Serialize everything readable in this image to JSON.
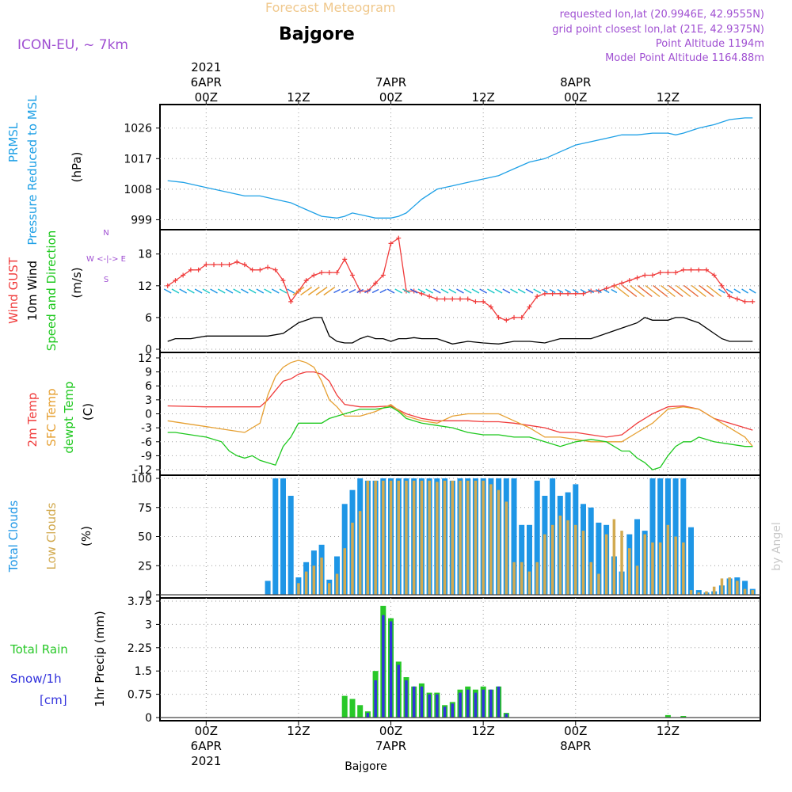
{
  "header": {
    "model": "ICON-EU, ~ 7km",
    "subtitle": "Forecast Meteogram",
    "location": "Bajgore",
    "requested": "requested lon,lat (20.9946E, 42.9555N)",
    "grid": "grid point closest lon,lat (21E, 42.9375N)",
    "point_alt": "Point Altitude 1194m",
    "model_alt": "Model Point Altitude 1164.88m",
    "watermark": "by Angel",
    "footer": "Bajgore"
  },
  "time_axis": {
    "top_labels": [
      {
        "h": 0,
        "lines": [
          "2021",
          "6APR",
          "00Z"
        ]
      },
      {
        "h": 12,
        "lines": [
          "12Z"
        ]
      },
      {
        "h": 24,
        "lines": [
          "7APR",
          "00Z"
        ]
      },
      {
        "h": 36,
        "lines": [
          "12Z"
        ]
      },
      {
        "h": 48,
        "lines": [
          "8APR",
          "00Z"
        ]
      },
      {
        "h": 60,
        "lines": [
          "12Z"
        ]
      }
    ],
    "bottom_labels": [
      {
        "h": 0,
        "lines": [
          "00Z",
          "6APR",
          "2021"
        ]
      },
      {
        "h": 12,
        "lines": [
          "12Z"
        ]
      },
      {
        "h": 24,
        "lines": [
          "00Z",
          "7APR"
        ]
      },
      {
        "h": 36,
        "lines": [
          "12Z"
        ]
      },
      {
        "h": 48,
        "lines": [
          "00Z",
          "8APR"
        ]
      },
      {
        "h": 60,
        "lines": [
          "12Z"
        ]
      }
    ]
  },
  "colors": {
    "prmsl": "#1ea0e6",
    "gust": "#f03c3c",
    "wind": "#000000",
    "temp2m": "#f03c3c",
    "sfc": "#e6a032",
    "dewpt": "#1ec81e",
    "total_cloud": "#1e96e6",
    "low_cloud": "#d2aa50",
    "rain": "#28c828",
    "snow": "#3232dc",
    "axis_label_purple": "#a050d2",
    "subtitle": "#f0c88c"
  },
  "chart_data": [
    {
      "type": "line",
      "ylabels": [
        "PRMSL",
        "Pressure Reduced to MSL",
        "(hPa)"
      ],
      "yticks": [
        999,
        1008,
        1017,
        1026
      ],
      "ylim": [
        997,
        1032
      ],
      "series": [
        {
          "key": "prmsl",
          "x": [
            -5,
            -3,
            -1,
            1,
            3,
            5,
            7,
            9,
            11,
            13,
            15,
            17,
            18,
            19,
            20,
            21,
            22,
            23,
            24,
            25,
            26,
            27,
            28,
            30,
            32,
            34,
            36,
            38,
            40,
            42,
            44,
            46,
            48,
            50,
            52,
            54,
            56,
            58,
            60,
            61,
            62,
            64,
            66,
            68,
            70,
            71
          ],
          "y": [
            1010.5,
            1010,
            1009,
            1008,
            1007,
            1006,
            1006,
            1005,
            1004,
            1002,
            1000,
            999.5,
            1000,
            1001,
            1000.5,
            1000,
            999.5,
            999.5,
            999.5,
            1000,
            1001,
            1003,
            1005,
            1008,
            1009,
            1010,
            1011,
            1012,
            1014,
            1016,
            1017,
            1019,
            1021,
            1022,
            1023,
            1024,
            1024,
            1024.5,
            1024.5,
            1024,
            1024.5,
            1026,
            1027,
            1028.5,
            1029,
            1029
          ]
        }
      ]
    },
    {
      "type": "line",
      "ylabels": [
        "Wind GUST",
        "10m Wind",
        "Speed and Direction",
        "(m/s)"
      ],
      "compass": [
        "N",
        "W <-|-> E",
        "S"
      ],
      "yticks": [
        0,
        6,
        12,
        18
      ],
      "ylim": [
        0,
        22
      ],
      "series": [
        {
          "key": "gust",
          "x": [
            -5,
            -4,
            -3,
            -2,
            -1,
            0,
            1,
            2,
            3,
            4,
            5,
            6,
            7,
            8,
            9,
            10,
            11,
            12,
            13,
            14,
            15,
            16,
            17,
            18,
            19,
            20,
            21,
            22,
            23,
            24,
            25,
            26,
            27,
            28,
            29,
            30,
            31,
            32,
            33,
            34,
            35,
            36,
            37,
            38,
            39,
            40,
            41,
            42,
            43,
            44,
            45,
            46,
            47,
            48,
            49,
            50,
            51,
            52,
            53,
            54,
            55,
            56,
            57,
            58,
            59,
            60,
            61,
            62,
            63,
            64,
            65,
            66,
            67,
            68,
            69,
            70,
            71
          ],
          "y": [
            12,
            13,
            14,
            15,
            15,
            16,
            16,
            16,
            16,
            16.5,
            16,
            15,
            15,
            15.5,
            15,
            13,
            9,
            11,
            13,
            14,
            14.5,
            14.5,
            14.5,
            17,
            14,
            11,
            11,
            12.5,
            14,
            20,
            21,
            11,
            11,
            10.5,
            10,
            9.5,
            9.5,
            9.5,
            9.5,
            9.5,
            9,
            9,
            8,
            6,
            5.5,
            6,
            6,
            8,
            10,
            10.5,
            10.5,
            10.5,
            10.5,
            10.5,
            10.5,
            11,
            11,
            11.5,
            12,
            12.5,
            13,
            13.5,
            14,
            14,
            14.5,
            14.5,
            14.5,
            15,
            15,
            15,
            15,
            14,
            12,
            10,
            9.5,
            9,
            9
          ]
        },
        {
          "key": "wind",
          "x": [
            -5,
            -4,
            -2,
            0,
            2,
            4,
            6,
            8,
            10,
            11,
            12,
            13,
            14,
            15,
            16,
            17,
            18,
            19,
            20,
            21,
            22,
            23,
            24,
            25,
            26,
            27,
            28,
            30,
            32,
            34,
            36,
            38,
            40,
            42,
            44,
            46,
            48,
            50,
            52,
            54,
            56,
            57,
            58,
            59,
            60,
            61,
            62,
            63,
            64,
            65,
            66,
            67,
            68,
            69,
            70,
            71
          ],
          "y": [
            1.5,
            2,
            2,
            2.5,
            2.5,
            2.5,
            2.5,
            2.5,
            3,
            4,
            5,
            5.5,
            6,
            6,
            2.5,
            1.5,
            1.2,
            1.2,
            2,
            2.5,
            2,
            2,
            1.5,
            2,
            2,
            2.2,
            2,
            2,
            1,
            1.5,
            1.2,
            1,
            1.5,
            1.5,
            1.2,
            2,
            2,
            2,
            3,
            4,
            5,
            6,
            5.5,
            5.5,
            5.5,
            6,
            6,
            5.5,
            5,
            4,
            3,
            2,
            1.5,
            1.5,
            1.5,
            1.5
          ]
        }
      ]
    },
    {
      "type": "line",
      "ylabels": [
        "2m Temp",
        "SFC Temp",
        "dewpt Temp",
        "(C)"
      ],
      "yticks": [
        -12,
        -9,
        -6,
        -3,
        0,
        3,
        6,
        9,
        12
      ],
      "ylim": [
        -12.5,
        12.5
      ],
      "series": [
        {
          "key": "temp2m",
          "x": [
            -5,
            0,
            5,
            7,
            8,
            9,
            10,
            11,
            12,
            13,
            14,
            15,
            16,
            17,
            18,
            20,
            22,
            24,
            26,
            28,
            30,
            32,
            34,
            36,
            38,
            40,
            42,
            44,
            46,
            48,
            50,
            52,
            54,
            56,
            58,
            60,
            62,
            64,
            66,
            68,
            70,
            71
          ],
          "y": [
            1.7,
            1.5,
            1.5,
            1.5,
            3,
            5,
            7,
            7.5,
            8.5,
            9,
            9,
            8.5,
            7,
            4,
            2,
            1.5,
            1.5,
            1.7,
            0,
            -1,
            -1.5,
            -1.5,
            -1.5,
            -1.7,
            -1.7,
            -2,
            -2.5,
            -3,
            -4,
            -4,
            -4.5,
            -5,
            -4.5,
            -2,
            0,
            1.5,
            1.7,
            1,
            -1,
            -2,
            -3,
            -3.5
          ]
        },
        {
          "key": "sfc",
          "x": [
            -5,
            -3,
            -1,
            1,
            3,
            5,
            7,
            8,
            9,
            10,
            11,
            12,
            13,
            14,
            15,
            16,
            17,
            18,
            20,
            22,
            24,
            26,
            28,
            30,
            32,
            34,
            36,
            38,
            40,
            42,
            44,
            46,
            48,
            50,
            52,
            54,
            56,
            58,
            60,
            62,
            64,
            66,
            68,
            70,
            71
          ],
          "y": [
            -1.5,
            -2,
            -2.5,
            -3,
            -3.5,
            -4,
            -2,
            4,
            8,
            10,
            11,
            11.5,
            11,
            10,
            7,
            3,
            1.5,
            -0.5,
            -0.5,
            0.5,
            2,
            -0.5,
            -1.5,
            -2,
            -0.5,
            0,
            0,
            0,
            -1.5,
            -3,
            -5,
            -5,
            -5.5,
            -6,
            -6,
            -6,
            -4,
            -2,
            1,
            1.5,
            1,
            -1,
            -3,
            -5,
            -7
          ]
        },
        {
          "key": "dewpt",
          "x": [
            -5,
            -4,
            -2,
            0,
            2,
            3,
            4,
            5,
            6,
            7,
            8,
            9,
            10,
            11,
            12,
            13,
            14,
            15,
            16,
            18,
            20,
            22,
            24,
            25,
            26,
            28,
            30,
            32,
            34,
            36,
            38,
            40,
            42,
            44,
            46,
            48,
            50,
            52,
            54,
            55,
            56,
            57,
            58,
            59,
            60,
            61,
            62,
            63,
            64,
            66,
            68,
            70,
            71
          ],
          "y": [
            -4,
            -4,
            -4.5,
            -5,
            -6,
            -8,
            -9,
            -9.5,
            -9,
            -10,
            -10.5,
            -11,
            -7,
            -5,
            -2,
            -2,
            -2,
            -2,
            -1,
            0,
            1,
            1,
            1.5,
            0.5,
            -1,
            -2,
            -2.5,
            -3,
            -4,
            -4.5,
            -4.5,
            -5,
            -5,
            -6,
            -7,
            -6,
            -5.5,
            -6,
            -8,
            -8,
            -9.5,
            -10.5,
            -12,
            -11.5,
            -9,
            -7,
            -6,
            -6,
            -5,
            -6,
            -6.5,
            -7,
            -7
          ]
        }
      ]
    },
    {
      "type": "bar",
      "ylabels": [
        "Total Clouds",
        "Low Clouds",
        "(%)"
      ],
      "yticks": [
        0,
        25,
        50,
        75,
        100
      ],
      "ylim": [
        0,
        100
      ],
      "x": [
        -5,
        -4,
        -3,
        -2,
        -1,
        0,
        1,
        2,
        3,
        4,
        5,
        6,
        7,
        8,
        9,
        10,
        11,
        12,
        13,
        14,
        15,
        16,
        17,
        18,
        19,
        20,
        21,
        22,
        23,
        24,
        25,
        26,
        27,
        28,
        29,
        30,
        31,
        32,
        33,
        34,
        35,
        36,
        37,
        38,
        39,
        40,
        41,
        42,
        43,
        44,
        45,
        46,
        47,
        48,
        49,
        50,
        51,
        52,
        53,
        54,
        55,
        56,
        57,
        58,
        59,
        60,
        61,
        62,
        63,
        64,
        65,
        66,
        67,
        68,
        69,
        70,
        71
      ],
      "series": [
        {
          "key": "total_cloud",
          "name": "Total Clouds",
          "values": [
            0,
            0,
            0,
            0,
            0,
            0,
            0,
            0,
            0,
            0,
            0,
            0,
            0,
            12,
            100,
            100,
            85,
            15,
            28,
            38,
            43,
            13,
            33,
            78,
            90,
            100,
            98,
            98,
            100,
            100,
            100,
            100,
            100,
            100,
            100,
            100,
            100,
            98,
            100,
            100,
            100,
            100,
            100,
            100,
            100,
            100,
            60,
            60,
            98,
            85,
            100,
            85,
            88,
            95,
            78,
            75,
            62,
            60,
            33,
            20,
            52,
            65,
            55,
            100,
            100,
            100,
            100,
            100,
            58,
            4,
            2,
            3,
            8,
            14,
            15,
            12,
            5
          ]
        },
        {
          "key": "low_cloud",
          "name": "Low Clouds",
          "values": [
            0,
            0,
            0,
            0,
            0,
            0,
            0,
            0,
            0,
            0,
            0,
            0,
            0,
            0,
            0,
            0,
            0,
            10,
            20,
            25,
            32,
            10,
            18,
            40,
            62,
            72,
            98,
            98,
            98,
            98,
            98,
            98,
            98,
            98,
            98,
            97,
            98,
            98,
            98,
            98,
            98,
            98,
            95,
            90,
            80,
            28,
            28,
            20,
            28,
            52,
            60,
            68,
            64,
            60,
            55,
            28,
            18,
            52,
            65,
            55,
            40,
            25,
            52,
            45,
            45,
            60,
            50,
            45,
            4,
            2,
            3,
            7,
            14,
            15,
            12,
            5,
            4
          ]
        }
      ]
    },
    {
      "type": "bar",
      "ylabels": [
        "Total Rain",
        "Snow/1h",
        "[cm]",
        "1hr Precip (mm)"
      ],
      "yticks": [
        0,
        0.75,
        1.5,
        2.25,
        3,
        3.75
      ],
      "ylim": [
        0,
        3.75
      ],
      "x": [
        18,
        19,
        20,
        21,
        22,
        23,
        24,
        25,
        26,
        27,
        28,
        29,
        30,
        31,
        32,
        33,
        34,
        35,
        36,
        37,
        38,
        39,
        40,
        41,
        42,
        43,
        60,
        62
      ],
      "series": [
        {
          "key": "rain",
          "name": "Total Rain",
          "values": [
            0.7,
            0.6,
            0.4,
            0.2,
            1.5,
            3.6,
            3.2,
            1.8,
            1.3,
            1.0,
            1.1,
            0.8,
            0.8,
            0.4,
            0.5,
            0.9,
            1.0,
            0.9,
            1.0,
            0.9,
            1.0,
            0.15,
            0.0,
            0.0,
            0.0,
            0.0,
            0.08,
            0.05
          ]
        },
        {
          "key": "snow",
          "name": "Snow/1h",
          "values": [
            0.0,
            0.0,
            0.0,
            0.15,
            1.2,
            3.3,
            3.1,
            1.7,
            1.2,
            1.0,
            1.0,
            0.75,
            0.75,
            0.35,
            0.45,
            0.8,
            0.9,
            0.8,
            0.9,
            0.9,
            1.0,
            0.12,
            0.0,
            0.0,
            0.0,
            0.0,
            0.0,
            0.0
          ]
        }
      ]
    }
  ]
}
